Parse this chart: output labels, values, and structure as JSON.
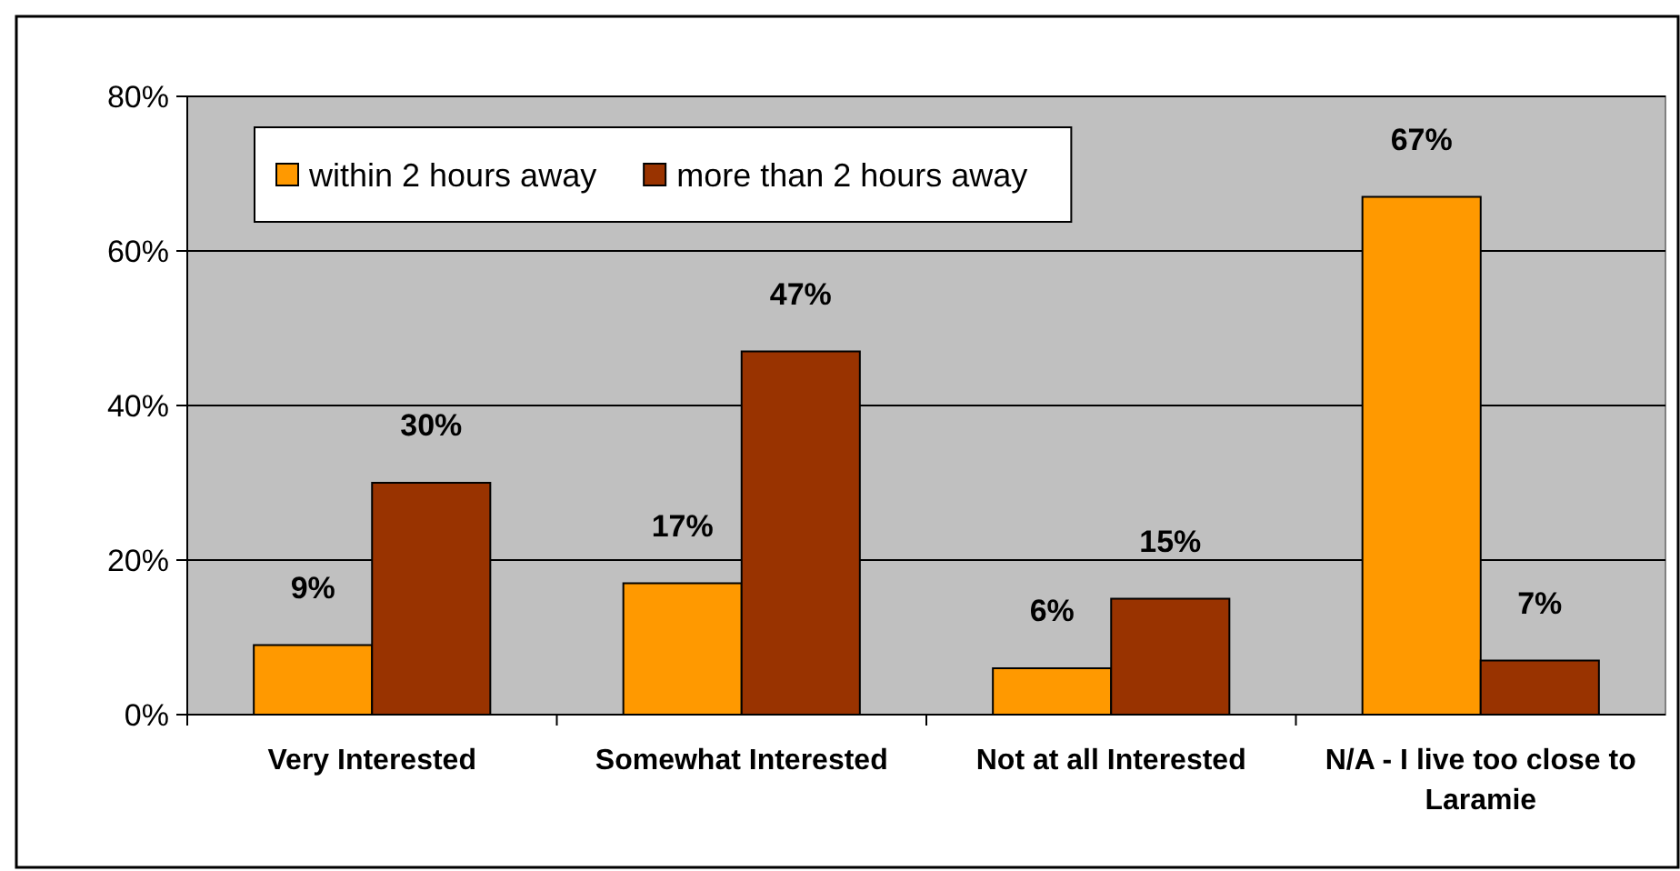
{
  "chart_data": {
    "type": "bar",
    "categories": [
      "Very Interested",
      "Somewhat Interested",
      "Not at all Interested",
      "N/A - I live too close to Laramie"
    ],
    "series": [
      {
        "name": "within 2 hours away",
        "color": "#ff9900",
        "values": [
          9,
          17,
          6,
          67
        ],
        "value_labels": [
          "9%",
          "17%",
          "6%",
          "67%"
        ]
      },
      {
        "name": "more than 2 hours away",
        "color": "#993300",
        "values": [
          30,
          47,
          15,
          7
        ],
        "value_labels": [
          "30%",
          "47%",
          "15%",
          "7%"
        ]
      }
    ],
    "ylim": [
      0,
      80
    ],
    "yticks": [
      {
        "value": 0,
        "label": "0%"
      },
      {
        "value": 20,
        "label": "20%"
      },
      {
        "value": 40,
        "label": "40%"
      },
      {
        "value": 60,
        "label": "60%"
      },
      {
        "value": 80,
        "label": "80%"
      }
    ],
    "grid": "y",
    "legend": "top left"
  }
}
